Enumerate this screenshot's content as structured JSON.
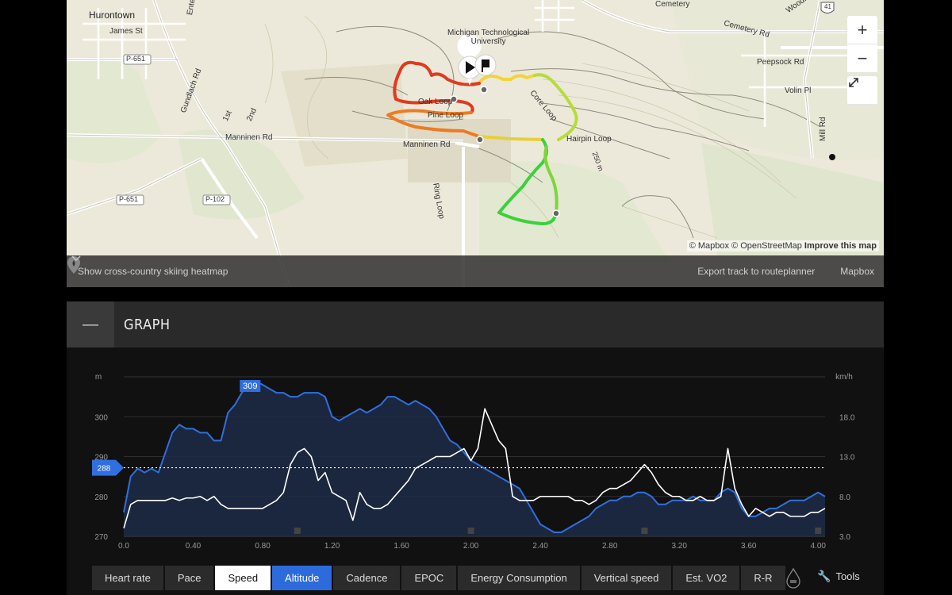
{
  "map": {
    "labels": {
      "hurontown": "Hurontown",
      "james": "James St",
      "enterprise": "Enterprise",
      "p651a": "P-651",
      "gundlach": "Gundlach Rd",
      "first": "1st",
      "second": "2nd",
      "manninen_left": "Manninen Rd",
      "manninen_mid": "Manninen Rd",
      "p651b": "P-651",
      "p102": "P-102",
      "university": "Michigan Technological\nUniversity",
      "oak": "Oak Loop",
      "pine": "Pine Loop",
      "core": "Core Loop",
      "hairpin": "Hairpin Loop",
      "ring": "Ring Loop",
      "cemetery": "Cemetery",
      "cemetery_rd": "Cemetery Rd",
      "woodmar": "Woodmar Dr",
      "peepsock": "Peepsock Rd",
      "volin": "Volin Pl",
      "mill": "Mill Rd",
      "route41": "41",
      "elev": "250 m"
    },
    "zoom_in": "+",
    "zoom_out": "−",
    "attribution": "© Mapbox © OpenStreetMap",
    "improve": "Improve this map",
    "heatmap_label": "Show cross-country skiing heatmap",
    "export_label": "Export track to routeplanner",
    "style_label": "Mapbox",
    "icons": [
      "play-icon",
      "flag-icon",
      "pin-icon",
      "expand-icon",
      "chevron-down-icon"
    ]
  },
  "graph": {
    "collapse_symbol": "—",
    "title": "GRAPH"
  },
  "chart_data": {
    "type": "line",
    "x_ticks": [
      "0.0",
      "0.40",
      "0.80",
      "1.20",
      "1.60",
      "2.00",
      "2.40",
      "2.80",
      "3.20",
      "3.60",
      "4.00"
    ],
    "left_axis": {
      "unit": "m",
      "ticks": [
        "300",
        "290",
        "280",
        "270"
      ],
      "range": [
        270,
        310
      ]
    },
    "right_axis": {
      "unit": "km/h",
      "ticks": [
        "18.0",
        "13.0",
        "8.0",
        "3.0"
      ],
      "range": [
        3,
        23
      ]
    },
    "max_marker": "309",
    "current_marker": "288",
    "current_speed_line": 11.6,
    "series": [
      {
        "role": "altitude",
        "color": "#2f6fe0",
        "x": [
          0.0,
          0.04,
          0.08,
          0.12,
          0.16,
          0.2,
          0.24,
          0.28,
          0.32,
          0.36,
          0.4,
          0.44,
          0.48,
          0.52,
          0.56,
          0.6,
          0.64,
          0.68,
          0.72,
          0.76,
          0.8,
          0.84,
          0.88,
          0.92,
          0.96,
          1.0,
          1.04,
          1.08,
          1.12,
          1.16,
          1.2,
          1.24,
          1.28,
          1.32,
          1.36,
          1.4,
          1.44,
          1.48,
          1.52,
          1.56,
          1.6,
          1.64,
          1.68,
          1.72,
          1.76,
          1.8,
          1.84,
          1.88,
          1.92,
          1.96,
          2.0,
          2.04,
          2.08,
          2.12,
          2.16,
          2.2,
          2.24,
          2.28,
          2.32,
          2.36,
          2.4,
          2.44,
          2.48,
          2.52,
          2.56,
          2.6,
          2.64,
          2.68,
          2.72,
          2.76,
          2.8,
          2.84,
          2.88,
          2.92,
          2.96,
          3.0,
          3.04,
          3.08,
          3.12,
          3.16,
          3.2,
          3.24,
          3.28,
          3.32,
          3.36,
          3.4,
          3.44,
          3.48,
          3.52,
          3.56,
          3.6,
          3.64,
          3.68,
          3.72,
          3.76,
          3.8,
          3.84,
          3.88,
          3.92,
          3.96,
          4.0,
          4.04
        ],
        "values": [
          276,
          285,
          287,
          286,
          287,
          286,
          291,
          296,
          298,
          297,
          297,
          296,
          296,
          294,
          294,
          301,
          303,
          306,
          308,
          309,
          308,
          307,
          306,
          306,
          305,
          305,
          306,
          306,
          306,
          305,
          300,
          299,
          300,
          301,
          302,
          301,
          302,
          303,
          305,
          305,
          304,
          303,
          304,
          303,
          302,
          300,
          297,
          294,
          293,
          291,
          289,
          288,
          287,
          286,
          285,
          284,
          283,
          282,
          279,
          276,
          273,
          272,
          271,
          271,
          272,
          273,
          274,
          275,
          277,
          278,
          279,
          279,
          280,
          280,
          281,
          281,
          280,
          278,
          278,
          279,
          279,
          279,
          280,
          279,
          279,
          279,
          281,
          282,
          281,
          277,
          275,
          275,
          276,
          277,
          277,
          278,
          279,
          279,
          279,
          280,
          281,
          280
        ]
      },
      {
        "role": "speed",
        "color": "#ffffff",
        "x": [
          0.0,
          0.04,
          0.08,
          0.12,
          0.16,
          0.2,
          0.24,
          0.28,
          0.32,
          0.36,
          0.4,
          0.44,
          0.48,
          0.52,
          0.56,
          0.6,
          0.64,
          0.68,
          0.72,
          0.76,
          0.8,
          0.84,
          0.88,
          0.92,
          0.96,
          1.0,
          1.04,
          1.08,
          1.12,
          1.16,
          1.2,
          1.24,
          1.28,
          1.32,
          1.36,
          1.4,
          1.44,
          1.48,
          1.52,
          1.56,
          1.6,
          1.64,
          1.68,
          1.72,
          1.76,
          1.8,
          1.84,
          1.88,
          1.92,
          1.96,
          2.0,
          2.04,
          2.08,
          2.12,
          2.16,
          2.2,
          2.24,
          2.28,
          2.32,
          2.36,
          2.4,
          2.44,
          2.48,
          2.52,
          2.56,
          2.6,
          2.64,
          2.68,
          2.72,
          2.76,
          2.8,
          2.84,
          2.88,
          2.92,
          2.96,
          3.0,
          3.04,
          3.08,
          3.12,
          3.16,
          3.2,
          3.24,
          3.28,
          3.32,
          3.36,
          3.4,
          3.44,
          3.48,
          3.52,
          3.56,
          3.6,
          3.64,
          3.68,
          3.72,
          3.76,
          3.8,
          3.84,
          3.88,
          3.92,
          3.96,
          4.0,
          4.04
        ],
        "values": [
          4,
          7,
          7.5,
          7.5,
          7.5,
          7.5,
          7.5,
          7.8,
          7.5,
          7.8,
          7.8,
          8,
          7.5,
          8,
          7,
          6.5,
          6.5,
          6.5,
          6.5,
          6.5,
          6.5,
          7,
          7.5,
          8.5,
          12,
          13.5,
          14,
          13,
          10,
          11,
          8.5,
          8,
          7.5,
          5,
          8.5,
          7,
          6.5,
          6.5,
          7,
          8,
          9,
          10,
          11.5,
          12,
          12.5,
          13,
          13,
          13,
          13.5,
          14,
          12.5,
          14,
          19,
          17,
          15,
          14,
          8,
          7.5,
          7.5,
          7.5,
          8,
          8,
          8,
          8,
          8,
          7.5,
          7.5,
          7,
          7.5,
          8.5,
          9,
          9,
          9.5,
          10,
          11,
          12,
          11,
          9.5,
          8.5,
          8,
          8,
          7.5,
          7.5,
          8,
          7.5,
          7.5,
          8,
          14,
          9,
          7,
          5.5,
          6.5,
          6,
          5.5,
          6,
          6,
          5.5,
          5.5,
          5.5,
          6,
          6,
          6.5
        ]
      }
    ]
  },
  "tabs": [
    {
      "label": "Heart rate",
      "state": "off"
    },
    {
      "label": "Pace",
      "state": "off"
    },
    {
      "label": "Speed",
      "state": "white"
    },
    {
      "label": "Altitude",
      "state": "blue"
    },
    {
      "label": "Cadence",
      "state": "off"
    },
    {
      "label": "EPOC",
      "state": "off"
    },
    {
      "label": "Energy Consumption",
      "state": "off"
    },
    {
      "label": "Vertical speed",
      "state": "off"
    },
    {
      "label": "Est. VO2",
      "state": "off"
    },
    {
      "label": "R-R",
      "state": "off"
    }
  ],
  "tools_label": "Tools"
}
